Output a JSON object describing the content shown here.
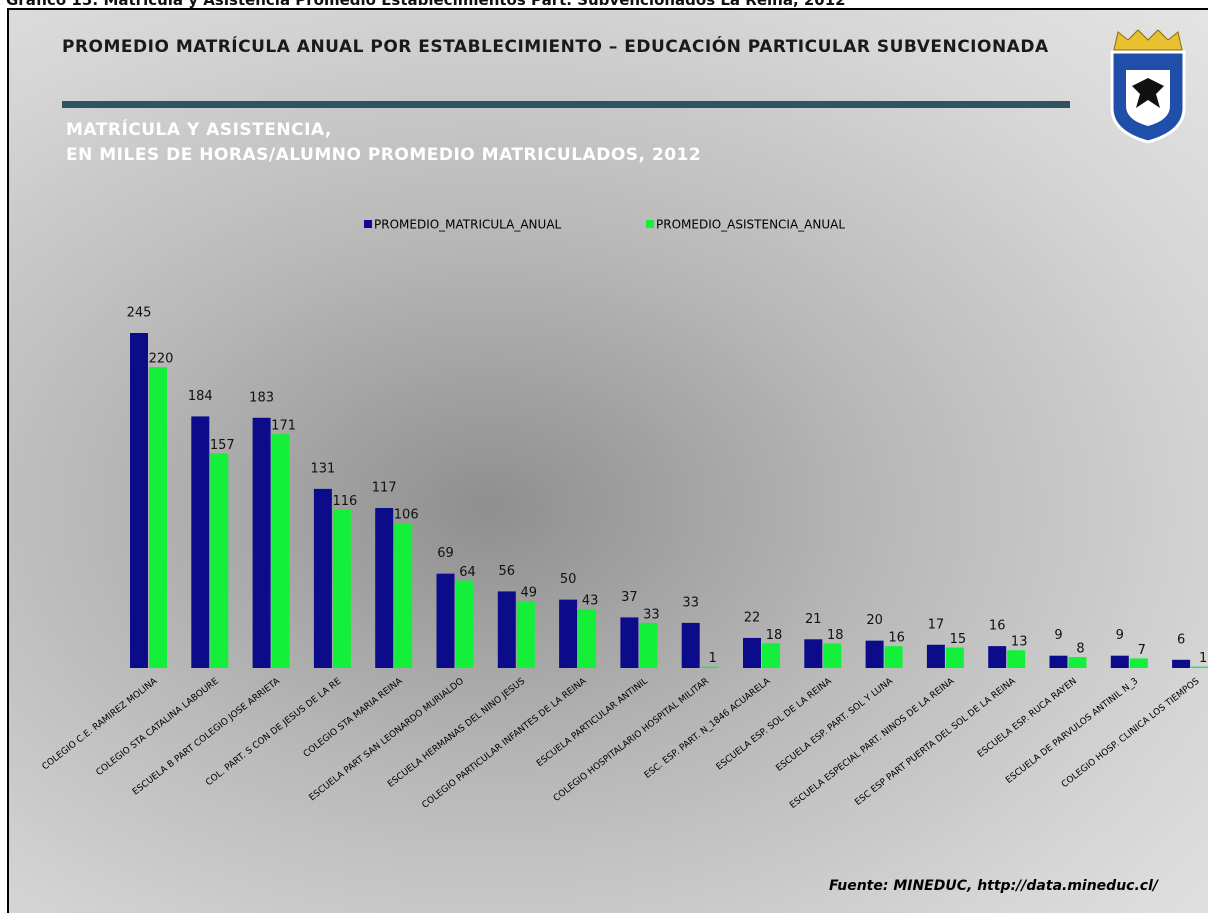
{
  "caption": "Gráfico 15: Matrícula y Asistencia Promedio Establecimientos Part. Subvencionados La Reina, 2012",
  "chart_data": {
    "type": "bar",
    "title": "PROMEDIO MATRÍCULA ANUAL POR ESTABLECIMIENTO – EDUCACIÓN PARTICULAR SUBVENCIONADA",
    "subtitle": [
      "MATRÍCULA Y ASISTENCIA,",
      "EN MILES DE HORAS/ALUMNO PROMEDIO MATRICULADOS, 2012"
    ],
    "legend": "top",
    "categories": [
      "COLEGIO C.E. RAMIREZ MOLINA",
      "COLEGIO STA CATALINA LABOURE",
      "ESCUELA B PART COLEGIO JOSE ARRIETA",
      "COL. PART. S CON DE JESUS DE LA RE",
      "COLEGIO STA MARIA REINA",
      "ESCUELA PART SAN LEONARDO MURIALDO",
      "ESCUELA HERMANAS DEL NINO JESUS",
      "COLEGIO PARTICULAR INFANTES DE LA REINA",
      "ESCUELA PARTICULAR ANTINIL",
      "COLEGIO HOSPITALARIO HOSPITAL MILITAR",
      "ESC. ESP. PART. N_1846 ACUARELA",
      "ESCUELA ESP. SOL DE LA REINA",
      "ESCUELA ESP. PART. SOL Y LUNA",
      "ESCUELA ESPECIAL PART. NINOS DE LA REINA",
      "ESC ESP PART PUERTA DEL SOL DE LA REINA",
      "ESCUELA ESP. RUCA RAYEN",
      "ESCUELA DE PARVULOS ANTINIL N_3",
      "COLEGIO HOSP. CLINICA LOS TIEMPOS"
    ],
    "series": [
      {
        "name": "PROMEDIO_MATRICULA_ANUAL",
        "color": "#0c0c8a",
        "values": [
          245,
          184,
          183,
          131,
          117,
          69,
          56,
          50,
          37,
          33,
          22,
          21,
          20,
          17,
          16,
          9,
          9,
          6
        ]
      },
      {
        "name": "PROMEDIO_ASISTENCIA_ANUAL",
        "color": "#14f03a",
        "values": [
          220,
          157,
          171,
          116,
          106,
          64,
          49,
          43,
          33,
          1,
          18,
          18,
          16,
          15,
          13,
          8,
          7,
          1
        ]
      }
    ],
    "source": "Fuente: MINEDUC, http://data.mineduc.cl/"
  }
}
